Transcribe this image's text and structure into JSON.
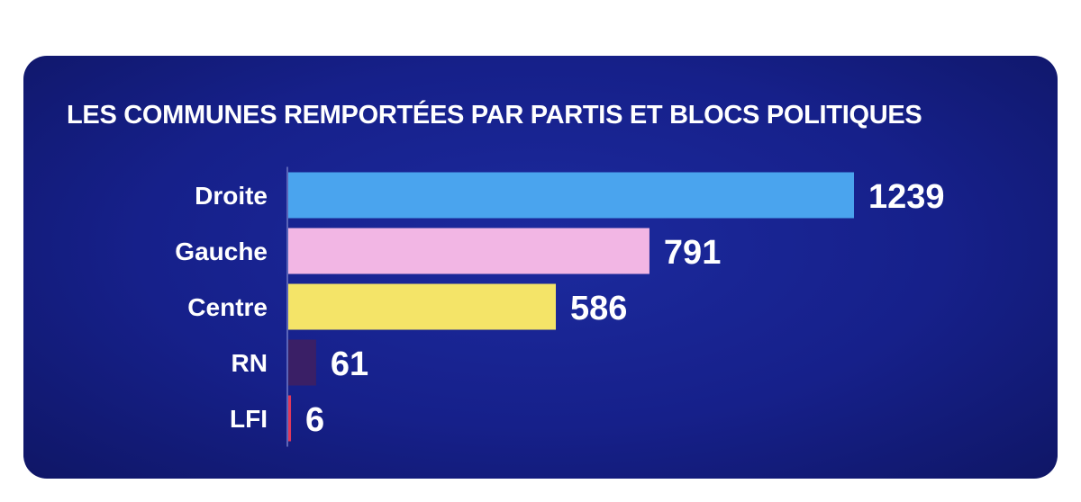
{
  "chart_data": {
    "type": "bar",
    "orientation": "horizontal",
    "title": "LES COMMUNES REMPORTÉES PAR PARTIS ET BLOCS POLITIQUES",
    "categories": [
      "Droite",
      "Gauche",
      "Centre",
      "RN",
      "LFI"
    ],
    "values": [
      1239,
      791,
      586,
      61,
      6
    ],
    "value_labels": [
      "1239",
      "791",
      "586",
      "61",
      "6"
    ],
    "colors": [
      "#4aa4ee",
      "#f2b6e4",
      "#f4e468",
      "#3a1f66",
      "#e0385a"
    ],
    "xlabel": "",
    "ylabel": "",
    "xlim": [
      0,
      1239
    ],
    "grid": false,
    "legend": "none"
  }
}
